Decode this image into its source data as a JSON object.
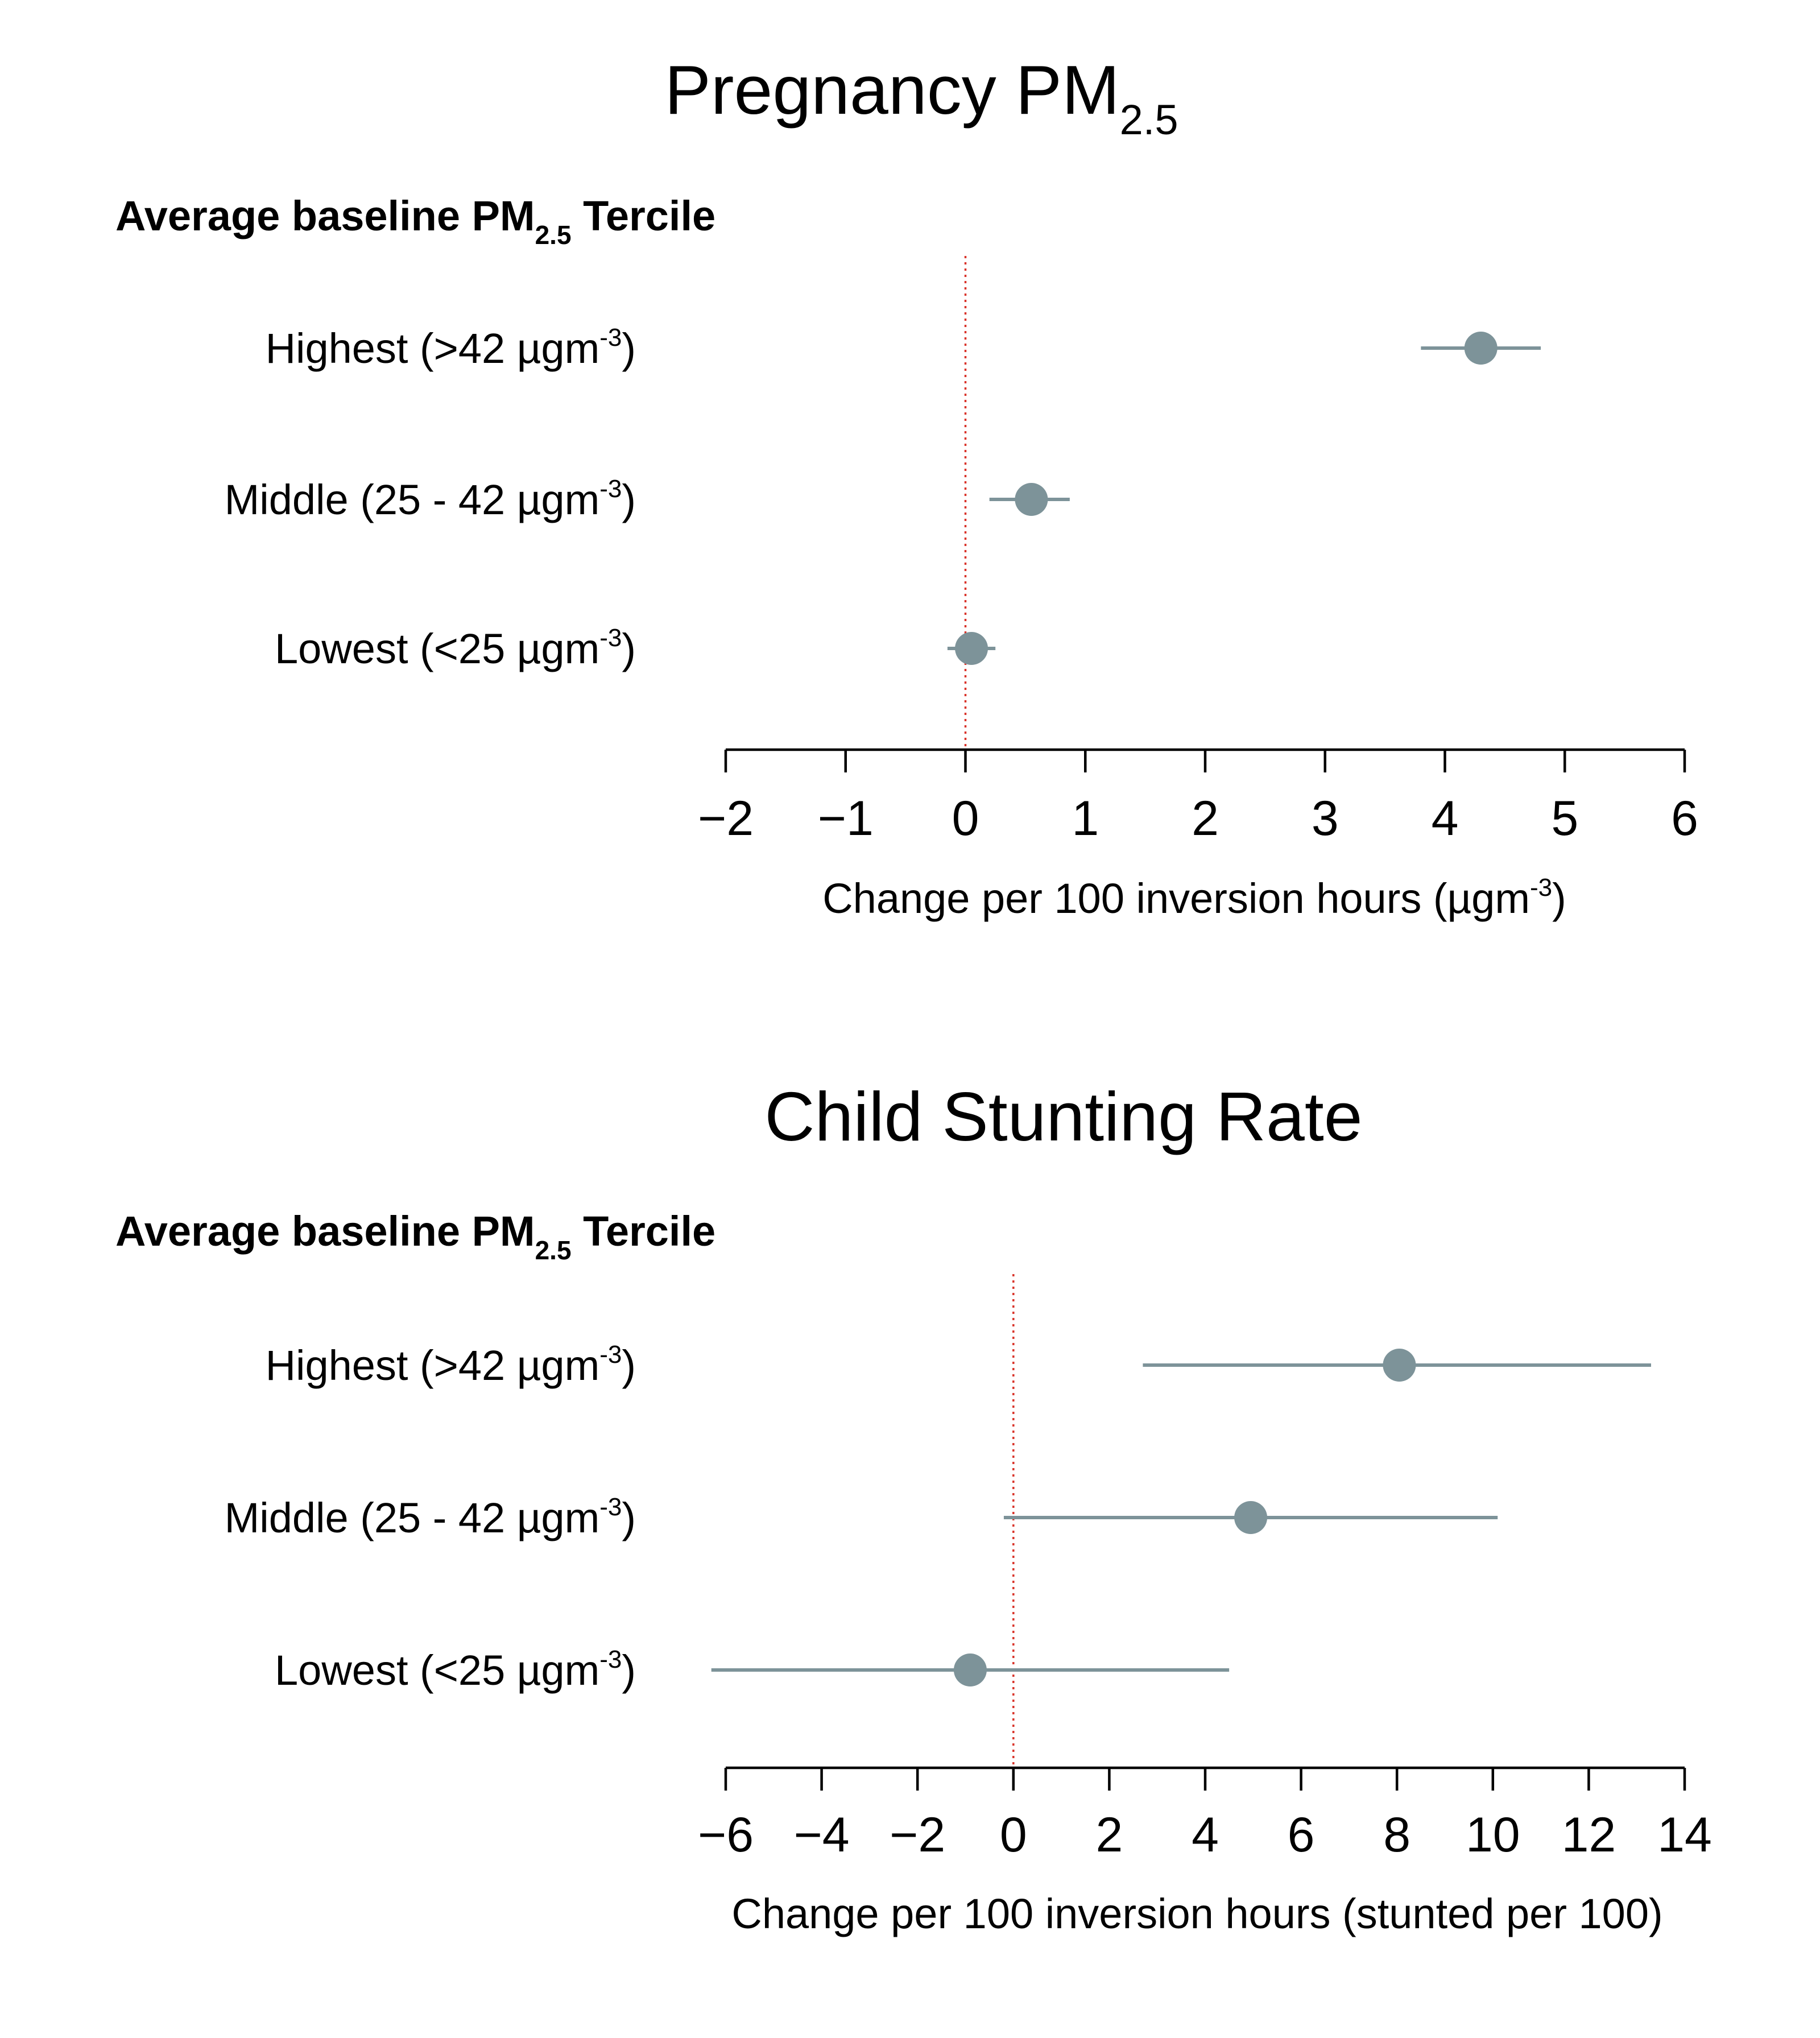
{
  "colors": {
    "marker": "#7d9399",
    "reference_line": "#d9342b",
    "axis": "#000000"
  },
  "chart_data": [
    {
      "type": "scatter",
      "title": "Pregnancy PM",
      "title_subscript": "2.5",
      "group_header": {
        "main": "Average baseline PM",
        "sub": "2.5",
        "tail": " Tercile"
      },
      "xlabel": "Change per 100 inversion hours (µgm",
      "xlabel_sup": "-3",
      "xlabel_tail": ")",
      "xlim": [
        -2,
        6
      ],
      "xticks": [
        -2,
        -1,
        0,
        1,
        2,
        3,
        4,
        5,
        6
      ],
      "xtick_labels": [
        "−2",
        "−1",
        "0",
        "1",
        "2",
        "3",
        "4",
        "5",
        "6"
      ],
      "reference_x": 0,
      "rows": [
        {
          "label": "Highest (>42 µgm",
          "sup": "-3",
          "tail": ")",
          "estimate": 4.3,
          "ci_low": 3.8,
          "ci_high": 4.8
        },
        {
          "label": "Middle (25 - 42 µgm",
          "sup": "-3",
          "tail": ")",
          "estimate": 0.55,
          "ci_low": 0.2,
          "ci_high": 0.87
        },
        {
          "label": "Lowest (<25 µgm",
          "sup": "-3",
          "tail": ")",
          "estimate": 0.05,
          "ci_low": -0.15,
          "ci_high": 0.25
        }
      ]
    },
    {
      "type": "scatter",
      "title": "Child Stunting Rate",
      "group_header": {
        "main": "Average baseline PM",
        "sub": "2.5",
        "tail": " Tercile"
      },
      "xlabel": "Change per 100 inversion hours (stunted per 100)",
      "xlim": [
        -6,
        14
      ],
      "xticks": [
        -6,
        -4,
        -2,
        0,
        2,
        4,
        6,
        8,
        10,
        12,
        14
      ],
      "xtick_labels": [
        "−6",
        "−4",
        "−2",
        "0",
        "2",
        "4",
        "6",
        "8",
        "10",
        "12",
        "14"
      ],
      "reference_x": 0,
      "rows": [
        {
          "label": "Highest (>42 µgm",
          "sup": "-3",
          "tail": ")",
          "estimate": 8.05,
          "ci_low": 2.7,
          "ci_high": 13.3
        },
        {
          "label": "Middle (25 - 42 µgm",
          "sup": "-3",
          "tail": ")",
          "estimate": 4.95,
          "ci_low": -0.2,
          "ci_high": 10.1
        },
        {
          "label": "Lowest (<25 µgm",
          "sup": "-3",
          "tail": ")",
          "estimate": -0.9,
          "ci_low": -6.3,
          "ci_high": 4.5
        }
      ]
    }
  ]
}
